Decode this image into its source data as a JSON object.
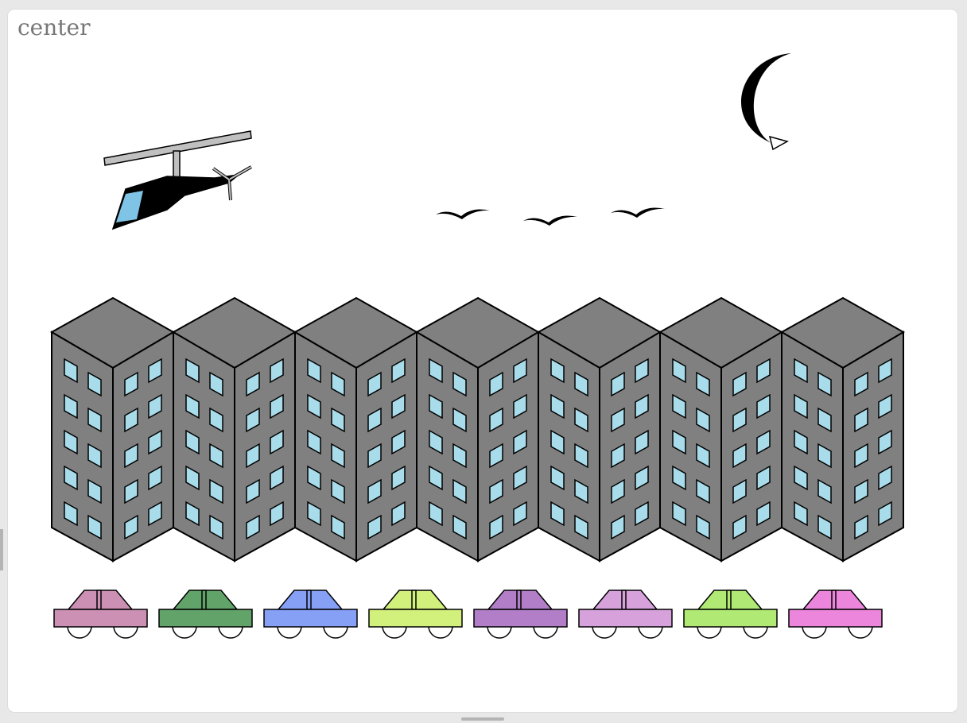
{
  "panel": {
    "label": "center"
  },
  "colors": {
    "building": "#808080",
    "window": "#a9dcea",
    "helicopter_window": "#7fc4e6",
    "rotor": "#c0c0c0",
    "background": "#ffffff"
  },
  "scene": {
    "helicopter": {
      "icon": "helicopter-icon"
    },
    "moon": {
      "icon": "crescent-moon-icon"
    },
    "birds": [
      {
        "icon": "bird-icon"
      },
      {
        "icon": "bird-icon"
      },
      {
        "icon": "bird-icon"
      }
    ],
    "buildings": [
      {
        "icon": "building-icon"
      },
      {
        "icon": "building-icon"
      },
      {
        "icon": "building-icon"
      },
      {
        "icon": "building-icon"
      },
      {
        "icon": "building-icon"
      },
      {
        "icon": "building-icon"
      },
      {
        "icon": "building-icon"
      }
    ],
    "cars": [
      {
        "icon": "car-icon",
        "color": "#cc90b4"
      },
      {
        "icon": "car-icon",
        "color": "#62a36a"
      },
      {
        "icon": "car-icon",
        "color": "#86a0f6"
      },
      {
        "icon": "car-icon",
        "color": "#d2f07c"
      },
      {
        "icon": "car-icon",
        "color": "#b27ec8"
      },
      {
        "icon": "car-icon",
        "color": "#d7a2dc"
      },
      {
        "icon": "car-icon",
        "color": "#b0ea74"
      },
      {
        "icon": "car-icon",
        "color": "#ec86dc"
      }
    ]
  }
}
